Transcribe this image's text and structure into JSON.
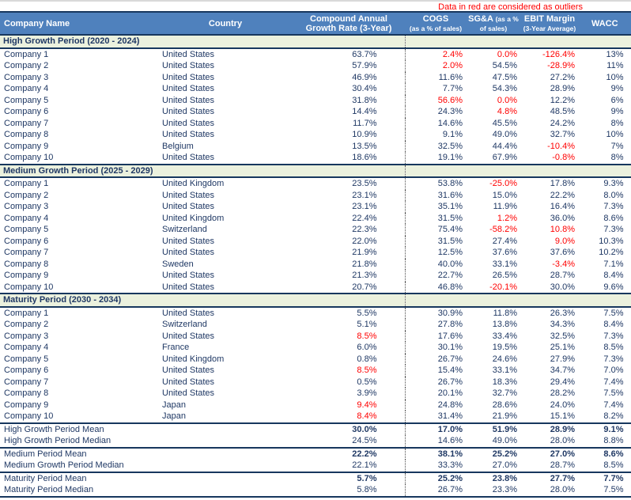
{
  "note": "Data in red are considered as outliers",
  "colors": {
    "header_bg": "#4F81BD",
    "header_text": "#FFFFFF",
    "section_bg": "#EBF1DE",
    "body_text": "#1F3864",
    "outlier_text": "#FF0000",
    "border": "#17375E"
  },
  "columns": [
    {
      "label": "Company Name"
    },
    {
      "label": "Country"
    },
    {
      "label": "Compound Annual Growth Rate (3-Year)"
    },
    {
      "label": "COGS",
      "sub": "(as a % of sales)"
    },
    {
      "label": "SG&A",
      "sub": "(as a % of sales)"
    },
    {
      "label": "EBIT Margin",
      "sub": "(3-Year Average)"
    },
    {
      "label": "WACC"
    }
  ],
  "sections": [
    {
      "title": "High Growth Period (2020 - 2024)",
      "rows": [
        {
          "company": "Company 1",
          "country": "United States",
          "cagr": "63.7%",
          "cogs": {
            "v": "2.4%",
            "outlier": true
          },
          "sga": {
            "v": "0.0%",
            "outlier": true
          },
          "ebit": {
            "v": "-126.4%",
            "outlier": true
          },
          "wacc": "13%"
        },
        {
          "company": "Company 2",
          "country": "United States",
          "cagr": "57.9%",
          "cogs": {
            "v": "2.0%",
            "outlier": true
          },
          "sga": "54.5%",
          "ebit": {
            "v": "-28.9%",
            "outlier": true
          },
          "wacc": "11%"
        },
        {
          "company": "Company 3",
          "country": "United States",
          "cagr": "46.9%",
          "cogs": "11.6%",
          "sga": "47.5%",
          "ebit": "27.2%",
          "wacc": "10%"
        },
        {
          "company": "Company 4",
          "country": "United States",
          "cagr": "30.4%",
          "cogs": "7.7%",
          "sga": "54.3%",
          "ebit": "28.9%",
          "wacc": "9%"
        },
        {
          "company": "Company 5",
          "country": "United States",
          "cagr": "31.8%",
          "cogs": {
            "v": "56.6%",
            "outlier": true
          },
          "sga": {
            "v": "0.0%",
            "outlier": true
          },
          "ebit": "12.2%",
          "wacc": "6%"
        },
        {
          "company": "Company 6",
          "country": "United States",
          "cagr": "14.4%",
          "cogs": "24.3%",
          "sga": {
            "v": "4.8%",
            "outlier": true
          },
          "ebit": "48.5%",
          "wacc": "9%"
        },
        {
          "company": "Company 7",
          "country": "United States",
          "cagr": "11.7%",
          "cogs": "14.6%",
          "sga": "45.5%",
          "ebit": "24.2%",
          "wacc": "8%"
        },
        {
          "company": "Company 8",
          "country": "United States",
          "cagr": "10.9%",
          "cogs": "9.1%",
          "sga": "49.0%",
          "ebit": "32.7%",
          "wacc": "10%"
        },
        {
          "company": "Company 9",
          "country": "Belgium",
          "cagr": "13.5%",
          "cogs": "32.5%",
          "sga": "44.4%",
          "ebit": {
            "v": "-10.4%",
            "outlier": true
          },
          "wacc": "7%"
        },
        {
          "company": "Company 10",
          "country": "United States",
          "cagr": "18.6%",
          "cogs": "19.1%",
          "sga": "67.9%",
          "ebit": {
            "v": "-0.8%",
            "outlier": true
          },
          "wacc": "8%"
        }
      ]
    },
    {
      "title": "Medium Growth Period (2025 - 2029)",
      "rows": [
        {
          "company": "Company 1",
          "country": "United Kingdom",
          "cagr": "23.5%",
          "cogs": "53.8%",
          "sga": {
            "v": "-25.0%",
            "outlier": true
          },
          "ebit": "17.8%",
          "wacc": "9.3%"
        },
        {
          "company": "Company 2",
          "country": "United States",
          "cagr": "23.1%",
          "cogs": "31.6%",
          "sga": "15.0%",
          "ebit": "22.2%",
          "wacc": "8.0%"
        },
        {
          "company": "Company 3",
          "country": "United States",
          "cagr": "23.1%",
          "cogs": "35.1%",
          "sga": "11.9%",
          "ebit": "16.4%",
          "wacc": "7.3%"
        },
        {
          "company": "Company 4",
          "country": "United Kingdom",
          "cagr": "22.4%",
          "cogs": "31.5%",
          "sga": {
            "v": "1.2%",
            "outlier": true
          },
          "ebit": "36.0%",
          "wacc": "8.6%"
        },
        {
          "company": "Company 5",
          "country": "Switzerland",
          "cagr": "22.3%",
          "cogs": "75.4%",
          "sga": {
            "v": "-58.2%",
            "outlier": true
          },
          "ebit": {
            "v": "10.8%",
            "outlier": true
          },
          "wacc": "7.3%"
        },
        {
          "company": "Company 6",
          "country": "United States",
          "cagr": "22.0%",
          "cogs": "31.5%",
          "sga": "27.4%",
          "ebit": {
            "v": "9.0%",
            "outlier": true
          },
          "wacc": "10.3%"
        },
        {
          "company": "Company 7",
          "country": "United States",
          "cagr": "21.9%",
          "cogs": "12.5%",
          "sga": "37.6%",
          "ebit": "37.6%",
          "wacc": "10.2%"
        },
        {
          "company": "Company 8",
          "country": "Sweden",
          "cagr": "21.8%",
          "cogs": "40.0%",
          "sga": "33.1%",
          "ebit": {
            "v": "-3.4%",
            "outlier": true
          },
          "wacc": "7.1%"
        },
        {
          "company": "Company 9",
          "country": "United States",
          "cagr": "21.3%",
          "cogs": "22.7%",
          "sga": "26.5%",
          "ebit": "28.7%",
          "wacc": "8.4%"
        },
        {
          "company": "Company 10",
          "country": "United States",
          "cagr": "20.7%",
          "cogs": "46.8%",
          "sga": {
            "v": "-20.1%",
            "outlier": true
          },
          "ebit": "30.0%",
          "wacc": "9.6%"
        }
      ]
    },
    {
      "title": "Maturity Period (2030 - 2034)",
      "rows": [
        {
          "company": "Company 1",
          "country": "United States",
          "cagr": "5.5%",
          "cogs": "30.9%",
          "sga": "11.8%",
          "ebit": "26.3%",
          "wacc": "7.5%"
        },
        {
          "company": "Company 2",
          "country": "Switzerland",
          "cagr": "5.1%",
          "cogs": "27.8%",
          "sga": "13.8%",
          "ebit": "34.3%",
          "wacc": "8.4%"
        },
        {
          "company": "Company 3",
          "country": "United States",
          "cagr": {
            "v": "8.5%",
            "outlier": true
          },
          "cogs": "17.6%",
          "sga": "33.4%",
          "ebit": "32.5%",
          "wacc": "7.3%"
        },
        {
          "company": "Company 4",
          "country": "France",
          "cagr": "6.0%",
          "cogs": "30.1%",
          "sga": "19.5%",
          "ebit": "25.1%",
          "wacc": "8.5%"
        },
        {
          "company": "Company 5",
          "country": "United Kingdom",
          "cagr": "0.8%",
          "cogs": "26.7%",
          "sga": "24.6%",
          "ebit": "27.9%",
          "wacc": "7.3%"
        },
        {
          "company": "Company 6",
          "country": "United States",
          "cagr": {
            "v": "8.5%",
            "outlier": true
          },
          "cogs": "15.4%",
          "sga": "33.1%",
          "ebit": "34.7%",
          "wacc": "7.0%"
        },
        {
          "company": "Company 7",
          "country": "United States",
          "cagr": "0.5%",
          "cogs": "26.7%",
          "sga": "18.3%",
          "ebit": "29.4%",
          "wacc": "7.4%"
        },
        {
          "company": "Company 8",
          "country": "United States",
          "cagr": "3.9%",
          "cogs": "20.1%",
          "sga": "32.7%",
          "ebit": "28.2%",
          "wacc": "7.5%"
        },
        {
          "company": "Company 9",
          "country": "Japan",
          "cagr": {
            "v": "9.4%",
            "outlier": true
          },
          "cogs": "24.8%",
          "sga": "28.6%",
          "ebit": "24.0%",
          "wacc": "7.4%"
        },
        {
          "company": "Company 10",
          "country": "Japan",
          "cagr": {
            "v": "8.4%",
            "outlier": true
          },
          "cogs": "31.4%",
          "sga": "21.9%",
          "ebit": "15.1%",
          "wacc": "8.2%"
        }
      ]
    }
  ],
  "summary_rows": [
    {
      "label": "High Growth Period Mean",
      "bold": true,
      "separator_above": true,
      "values": [
        "30.0%",
        "17.0%",
        "51.9%",
        "28.9%",
        "9.1%"
      ]
    },
    {
      "label": "High Growth Period Median",
      "bold": false,
      "separator_above": false,
      "values": [
        "24.5%",
        "14.6%",
        "49.0%",
        "28.0%",
        "8.8%"
      ]
    },
    {
      "label": "Medium Period Mean",
      "bold": true,
      "separator_above": true,
      "values": [
        "22.2%",
        "38.1%",
        "25.2%",
        "27.0%",
        "8.6%"
      ]
    },
    {
      "label": "Medium Growth Period Median",
      "bold": false,
      "separator_above": false,
      "values": [
        "22.1%",
        "33.3%",
        "27.0%",
        "28.7%",
        "8.5%"
      ]
    },
    {
      "label": "Maturity Period Mean",
      "bold": true,
      "separator_above": true,
      "values": [
        "5.7%",
        "25.2%",
        "23.8%",
        "27.7%",
        "7.7%"
      ]
    },
    {
      "label": "Maturity Period Median",
      "bold": false,
      "separator_above": false,
      "values": [
        "5.8%",
        "26.7%",
        "23.3%",
        "28.0%",
        "7.5%"
      ]
    }
  ]
}
